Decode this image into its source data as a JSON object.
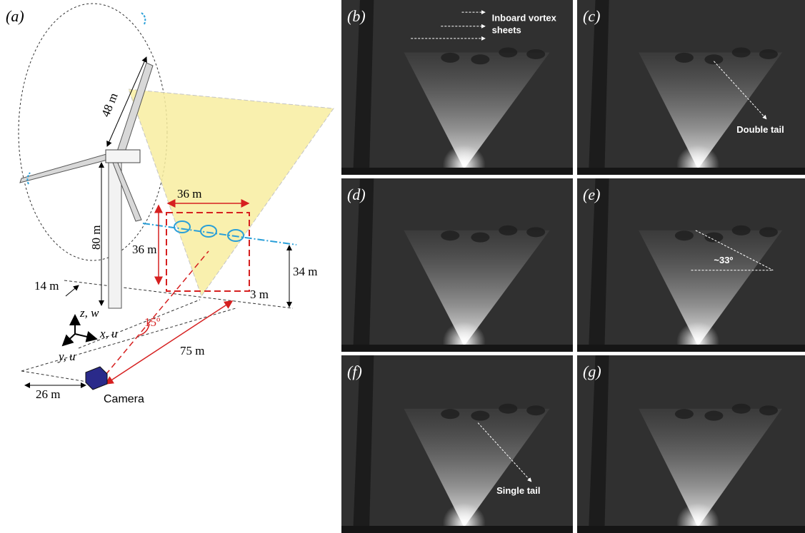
{
  "diagram": {
    "label": "(a)",
    "dims": {
      "blade": "48 m",
      "window_width": "36 m",
      "hub_height": "80 m",
      "window_height": "36 m",
      "window_base": "34 m",
      "tower_offset": "14 m",
      "ground_gap": "3 m",
      "distance": "75 m",
      "lateral": "26 m"
    },
    "angle": "15º",
    "axes": {
      "z": "z, w",
      "x": "x, u",
      "y": "y, u"
    },
    "camera": "Camera"
  },
  "photos": [
    {
      "label": "(b)",
      "annotation": [
        "Inboard vortex",
        "sheets"
      ]
    },
    {
      "label": "(c)",
      "annotation": [
        "Double tail"
      ]
    },
    {
      "label": "(d)"
    },
    {
      "label": "(e)",
      "annotation": [
        "~33º"
      ]
    },
    {
      "label": "(f)",
      "annotation": [
        "Single tail"
      ]
    },
    {
      "label": "(g)"
    }
  ]
}
